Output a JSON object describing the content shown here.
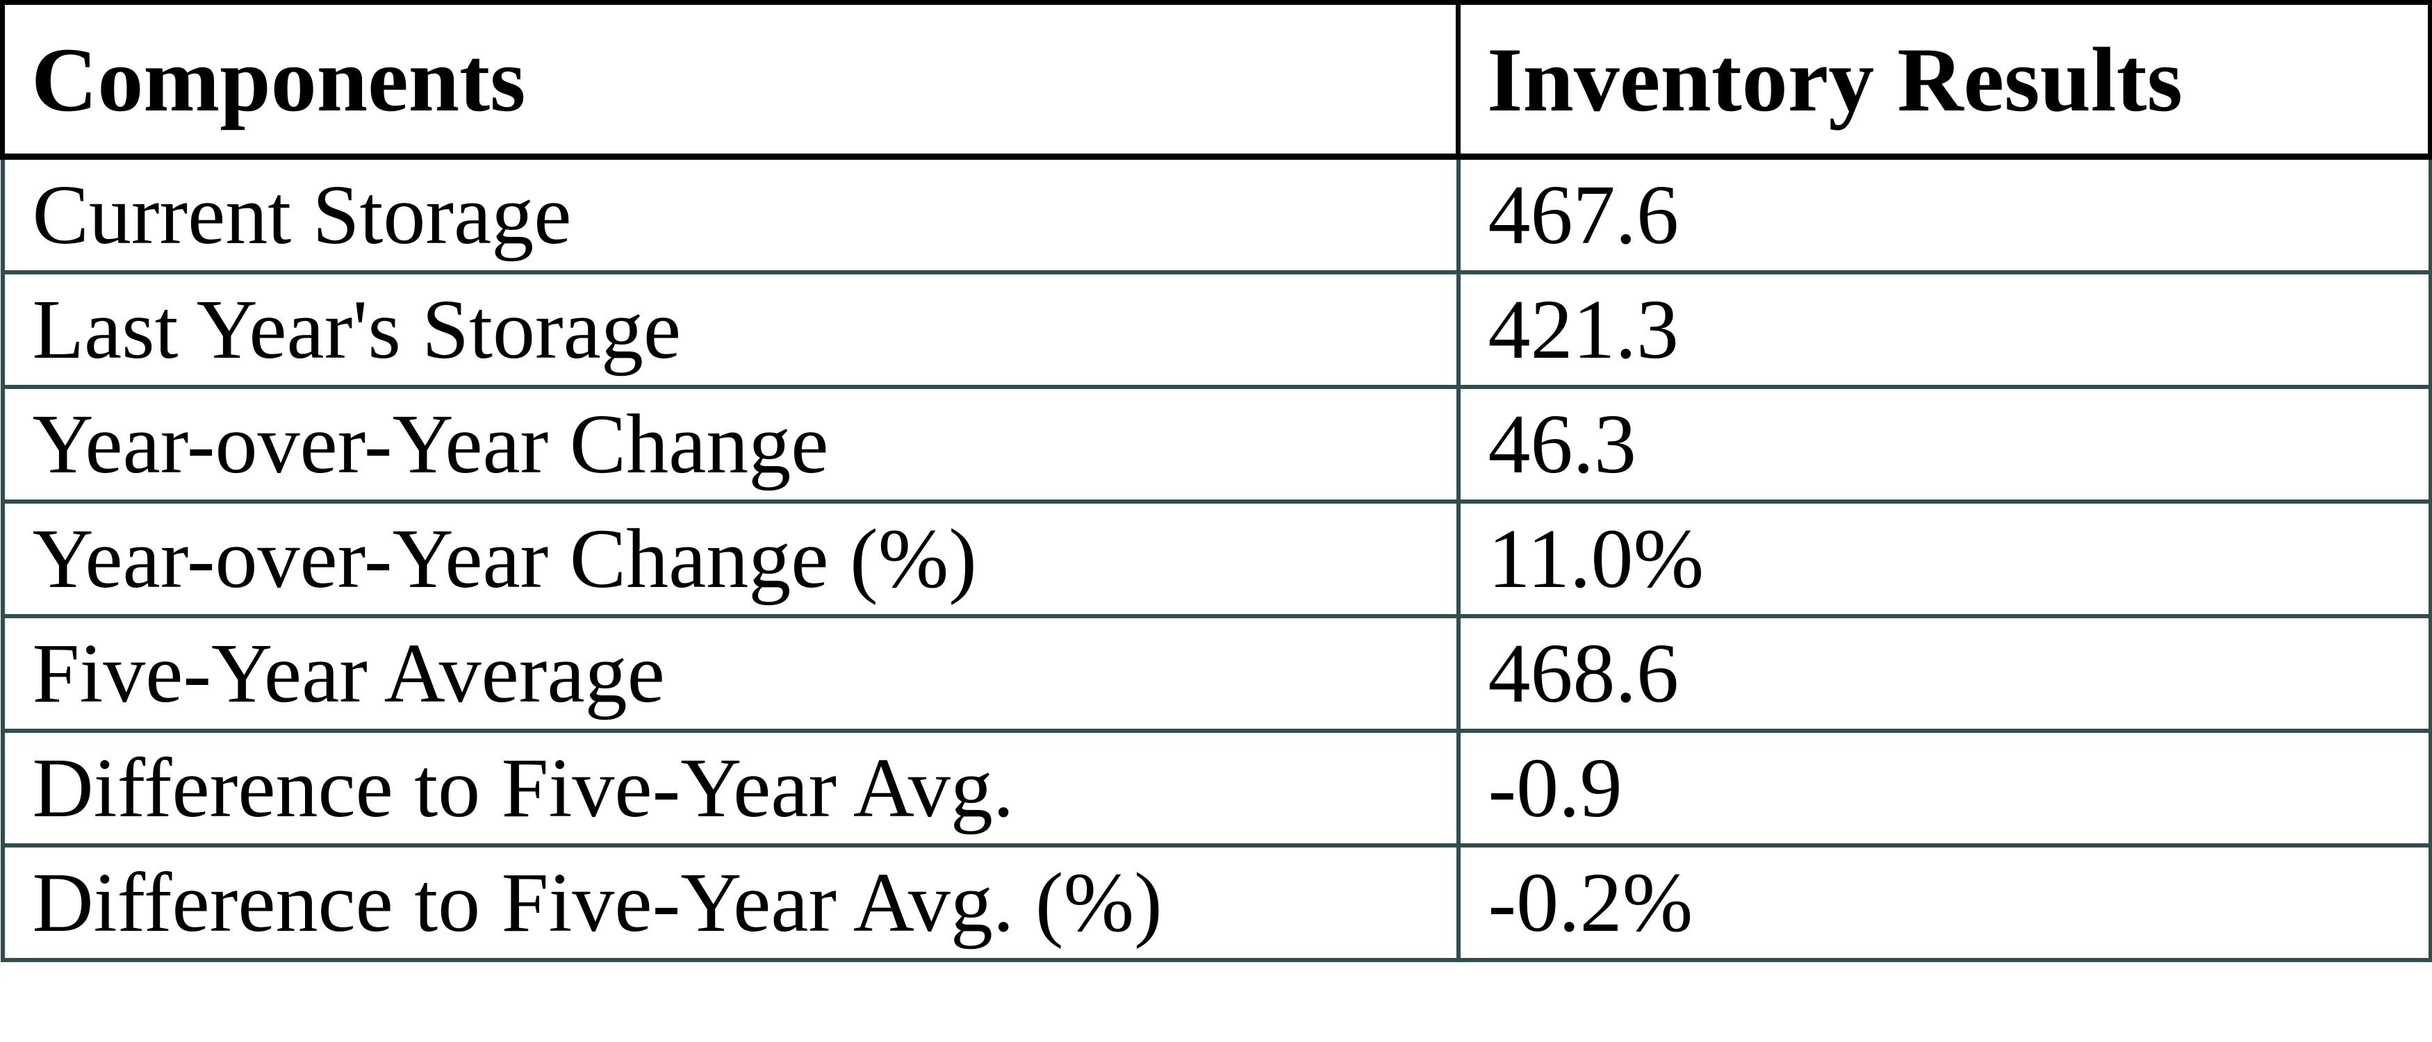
{
  "table": {
    "headers": [
      "Components",
      "Inventory Results"
    ],
    "rows": [
      {
        "component": "Current Storage",
        "value": "467.6"
      },
      {
        "component": "Last Year's Storage",
        "value": "421.3"
      },
      {
        "component": "Year-over-Year Change",
        "value": "46.3"
      },
      {
        "component": "Year-over-Year Change (%)",
        "value": "11.0%"
      },
      {
        "component": "Five-Year Average",
        "value": "468.6"
      },
      {
        "component": "Difference to Five-Year Avg.",
        "value": "-0.9"
      },
      {
        "component": "Difference to Five-Year Avg. (%)",
        "value": "-0.2%"
      }
    ]
  },
  "colors": {
    "header_border": "#000000",
    "body_border": "#2F4F4F",
    "text": "#000000",
    "background": "#FFFFFF"
  },
  "chart_data": {
    "type": "table",
    "columns": [
      "Components",
      "Inventory Results"
    ],
    "rows": [
      [
        "Current Storage",
        "467.6"
      ],
      [
        "Last Year's Storage",
        "421.3"
      ],
      [
        "Year-over-Year Change",
        "46.3"
      ],
      [
        "Year-over-Year Change (%)",
        "11.0%"
      ],
      [
        "Five-Year Average",
        "468.6"
      ],
      [
        "Difference to Five-Year Avg.",
        "-0.9"
      ],
      [
        "Difference to Five-Year Avg. (%)",
        "-0.2%"
      ]
    ],
    "numeric_values": {
      "current_storage": 467.6,
      "last_year_storage": 421.3,
      "yoy_change": 46.3,
      "yoy_change_pct": 11.0,
      "five_year_average": 468.6,
      "diff_to_five_year_avg": -0.9,
      "diff_to_five_year_avg_pct": -0.2
    }
  }
}
